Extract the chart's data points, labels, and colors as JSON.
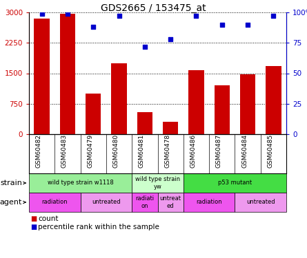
{
  "title": "GDS2665 / 153475_at",
  "samples": [
    "GSM60482",
    "GSM60483",
    "GSM60479",
    "GSM60480",
    "GSM60481",
    "GSM60478",
    "GSM60486",
    "GSM60487",
    "GSM60484",
    "GSM60485"
  ],
  "counts": [
    2850,
    2970,
    1000,
    1750,
    550,
    300,
    1580,
    1200,
    1480,
    1680
  ],
  "percentiles": [
    99,
    99,
    88,
    97,
    72,
    78,
    97,
    90,
    90,
    97
  ],
  "bar_color": "#cc0000",
  "dot_color": "#0000cc",
  "ylim_left": [
    0,
    3000
  ],
  "ylim_right": [
    0,
    100
  ],
  "yticks_left": [
    0,
    750,
    1500,
    2250,
    3000
  ],
  "ytick_labels_left": [
    "0",
    "750",
    "1500",
    "2250",
    "3000"
  ],
  "yticks_right": [
    0,
    25,
    50,
    75,
    100
  ],
  "ytick_labels_right": [
    "0",
    "25",
    "50",
    "75",
    "100%"
  ],
  "strain_groups": [
    {
      "label": "wild type strain w1118",
      "start": 0,
      "end": 4,
      "color": "#99ee99"
    },
    {
      "label": "wild type strain\nyw",
      "start": 4,
      "end": 6,
      "color": "#ccffcc"
    },
    {
      "label": "p53 mutant",
      "start": 6,
      "end": 10,
      "color": "#44dd44"
    }
  ],
  "agent_groups": [
    {
      "label": "radiation",
      "start": 0,
      "end": 2,
      "color": "#ee55ee"
    },
    {
      "label": "untreated",
      "start": 2,
      "end": 4,
      "color": "#ee99ee"
    },
    {
      "label": "radiati-\non",
      "start": 4,
      "end": 5,
      "color": "#ee55ee"
    },
    {
      "label": "untreat-\ned",
      "start": 5,
      "end": 6,
      "color": "#ee99ee"
    },
    {
      "label": "radiation",
      "start": 6,
      "end": 8,
      "color": "#ee55ee"
    },
    {
      "label": "untreated",
      "start": 8,
      "end": 10,
      "color": "#ee99ee"
    }
  ],
  "legend_count_label": "count",
  "legend_pct_label": "percentile rank within the sample",
  "left_label_color": "#cc0000",
  "right_label_color": "#0000cc",
  "background_color": "#ffffff",
  "strain_label": "strain",
  "agent_label": "agent"
}
